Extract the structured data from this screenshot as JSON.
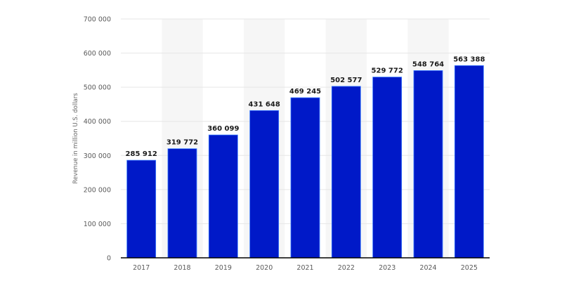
{
  "chart_data": {
    "type": "bar",
    "title": "",
    "xlabel": "",
    "ylabel": "Revenue in million U.S. dollars",
    "categories": [
      "2017",
      "2018",
      "2019",
      "2020",
      "2021",
      "2022",
      "2023",
      "2024",
      "2025"
    ],
    "values": [
      285912,
      319772,
      360099,
      431648,
      469245,
      502577,
      529772,
      548764,
      563388
    ],
    "value_labels": [
      "285 912",
      "319 772",
      "360 099",
      "431 648",
      "469 245",
      "502 577",
      "529 772",
      "548 764",
      "563 388"
    ],
    "ylim": [
      0,
      700000
    ],
    "yticks": [
      0,
      100000,
      200000,
      300000,
      400000,
      500000,
      600000,
      700000
    ],
    "ytick_labels": [
      "0",
      "100 000",
      "200 000",
      "300 000",
      "400 000",
      "500 000",
      "600 000",
      "700 000"
    ],
    "grid": true,
    "legend": null,
    "bar_color": "#0019c8",
    "bar_edge_color": "#3a7bff",
    "stripe_color": "#f6f6f6",
    "gridline_color": "#e6e6e6",
    "axis_color": "#000000"
  }
}
